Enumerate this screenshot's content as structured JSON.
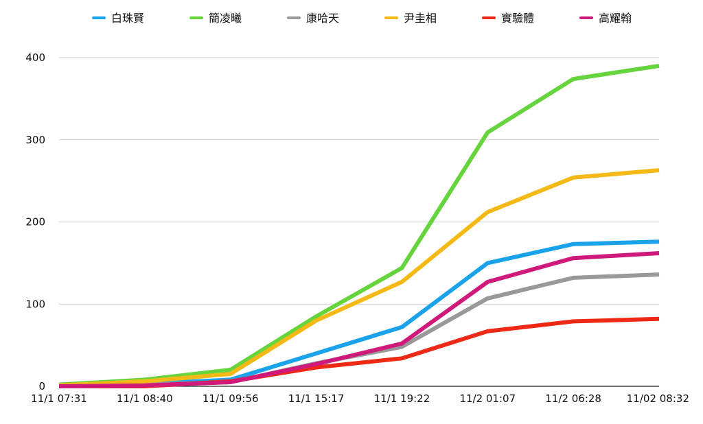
{
  "chart_data": {
    "type": "line",
    "categories": [
      "11/1 07:31",
      "11/1 08:40",
      "11/1 09:56",
      "11/1 15:17",
      "11/1 19:22",
      "11/2 01:07",
      "11/2 06:28",
      "11/02 08:32"
    ],
    "ylim": [
      0,
      400
    ],
    "yticks": [
      0,
      100,
      200,
      300,
      400
    ],
    "grid": true,
    "legend_position": "top",
    "series": [
      {
        "name": "白珠賢",
        "color": "#1aa3ea",
        "values": [
          1,
          3,
          8,
          40,
          72,
          150,
          173,
          176
        ]
      },
      {
        "name": "簡凌曦",
        "color": "#66d43c",
        "values": [
          2,
          8,
          20,
          85,
          144,
          309,
          374,
          390
        ]
      },
      {
        "name": "康哈天",
        "color": "#999999",
        "values": [
          0,
          2,
          5,
          28,
          48,
          107,
          132,
          136
        ]
      },
      {
        "name": "尹圭相",
        "color": "#f4b915",
        "values": [
          1,
          6,
          15,
          80,
          127,
          212,
          254,
          263
        ]
      },
      {
        "name": "實驗體",
        "color": "#ee2a16",
        "values": [
          0,
          0,
          6,
          23,
          34,
          67,
          79,
          82
        ]
      },
      {
        "name": "高耀翰",
        "color": "#d01a7b",
        "values": [
          0,
          1,
          5,
          27,
          52,
          127,
          156,
          162
        ]
      }
    ]
  }
}
